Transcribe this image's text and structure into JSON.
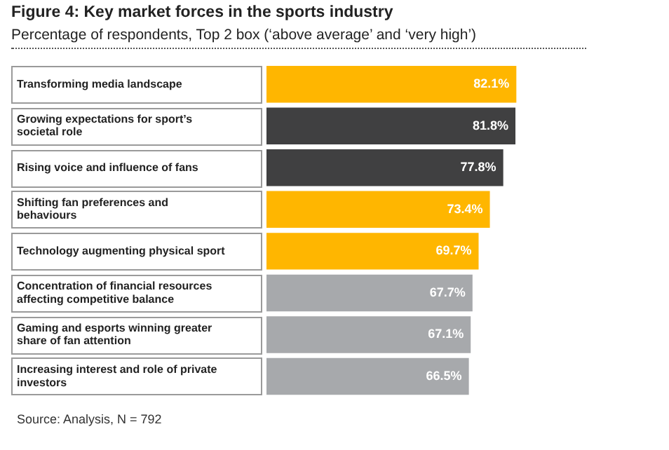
{
  "chart_data": {
    "type": "bar",
    "orientation": "horizontal",
    "title": "Figure 4: Key market forces in the sports industry",
    "subtitle": "Percentage of respondents, Top 2 box (‘above average’ and ‘very high’)",
    "categories": [
      "Transforming media landscape",
      "Growing expectations for sport’s societal role",
      "Rising voice and influence of fans",
      "Shifting fan preferences and behaviours",
      "Technology augmenting physical sport",
      "Concentration of financial resources affecting competitive balance",
      "Gaming and esports winning greater share of fan attention",
      "Increasing interest and role of private investors"
    ],
    "values": [
      82.1,
      81.8,
      77.8,
      73.4,
      69.7,
      67.7,
      67.1,
      66.5
    ],
    "colors": [
      "#ffb600",
      "#404041",
      "#404041",
      "#ffb600",
      "#ffb600",
      "#a7a9ac",
      "#a7a9ac",
      "#a7a9ac"
    ],
    "value_labels": [
      "82.1%",
      "81.8%",
      "77.8%",
      "73.4%",
      "69.7%",
      "67.7%",
      "67.1%",
      "66.5%"
    ],
    "annotations": [
      "Source: Analysis, N = 792"
    ]
  }
}
